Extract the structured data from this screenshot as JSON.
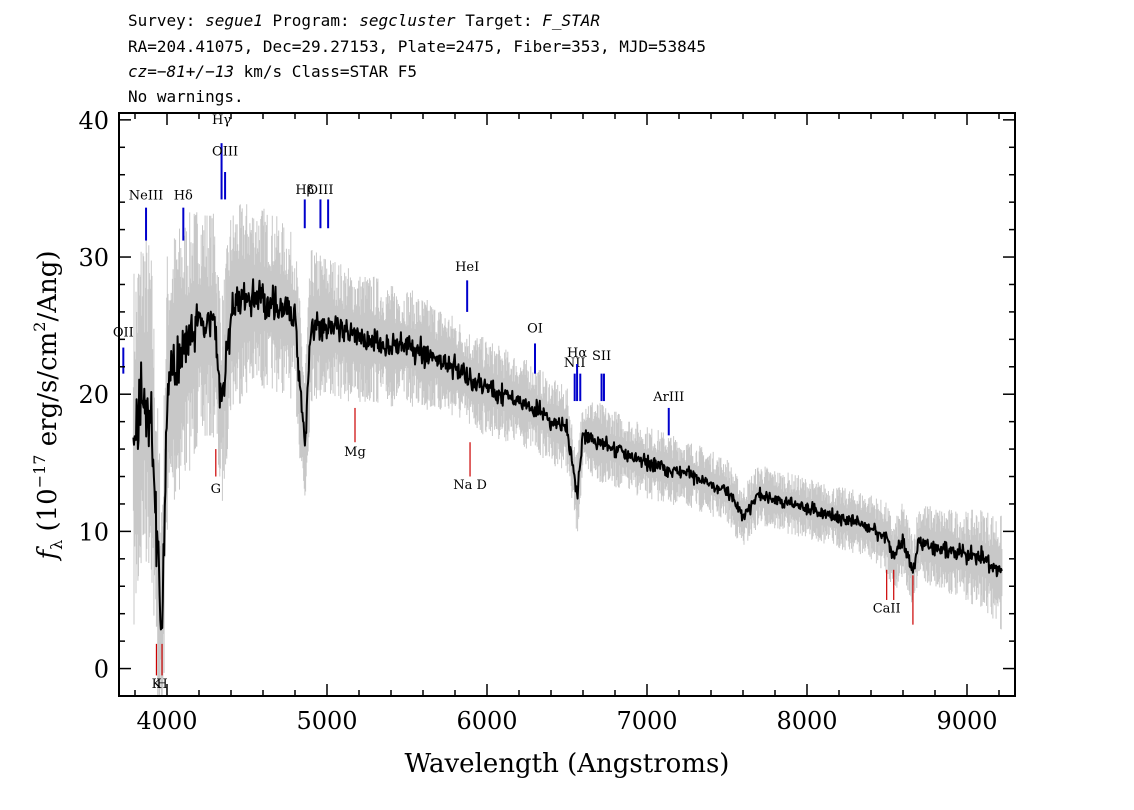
{
  "header": {
    "survey_label": "Survey:",
    "survey_value": "segue1",
    "program_label": "Program:",
    "program_value": "segcluster",
    "target_label": "Target:",
    "target_value": "F_STAR",
    "line2": "RA=204.41075, Dec=29.27153, Plate=2475, Fiber=353, MJD=53845",
    "cz_value": "cz=−81+/−13",
    "cz_rest": " km/s Class=STAR F5",
    "line4": "No warnings."
  },
  "colors": {
    "flux": "#000000",
    "error_band": "#c8c8c8",
    "emission_marker": "#0000cc",
    "absorption_marker": "#cc0000"
  },
  "chart_data": {
    "type": "line",
    "title": "",
    "xlabel": "Wavelength (Angstroms)",
    "ylabel": "fλ (10⁻¹⁷ erg/s/cm²/Ang)",
    "xlim": [
      3700,
      9300
    ],
    "ylim": [
      -2,
      40.5
    ],
    "x_ticks": [
      4000,
      5000,
      6000,
      7000,
      8000,
      9000
    ],
    "y_ticks": [
      0,
      10,
      20,
      30,
      40
    ],
    "grid": false,
    "series": [
      {
        "role": "flux",
        "x": [
          3800,
          3850,
          3900,
          3950,
          3970,
          4000,
          4050,
          4100,
          4150,
          4200,
          4300,
          4340,
          4400,
          4500,
          4600,
          4700,
          4800,
          4861,
          4900,
          5000,
          5100,
          5200,
          5300,
          5400,
          5500,
          5600,
          5700,
          5800,
          5900,
          6000,
          6100,
          6200,
          6300,
          6400,
          6500,
          6563,
          6600,
          6700,
          6800,
          6900,
          7000,
          7100,
          7200,
          7300,
          7400,
          7500,
          7600,
          7700,
          7800,
          7900,
          8000,
          8100,
          8200,
          8300,
          8400,
          8500,
          8542,
          8600,
          8662,
          8700,
          8800,
          8900,
          9000,
          9100,
          9200
        ],
        "y": [
          16,
          20,
          19,
          6,
          3,
          20,
          22,
          23,
          24,
          25,
          25,
          19,
          26,
          27,
          27,
          26.5,
          25.5,
          16.5,
          25,
          25,
          24.5,
          24,
          24,
          23.5,
          23.5,
          23,
          22.5,
          22,
          21,
          20.5,
          20,
          19.5,
          19,
          18,
          17.5,
          12.5,
          17,
          16.5,
          16,
          15.5,
          15,
          14.7,
          14.3,
          14,
          13.5,
          13,
          11,
          12.7,
          12.3,
          12,
          11.7,
          11.3,
          11,
          10.7,
          10.3,
          9.5,
          8,
          9.5,
          7,
          9.3,
          8.8,
          8.5,
          8.2,
          8,
          7
        ]
      },
      {
        "role": "error_band",
        "x": [
          3800,
          4000,
          4200,
          4400,
          4600,
          4800,
          5000,
          5400,
          5800,
          6200,
          6600,
          7000,
          7400,
          7800,
          8200,
          8600,
          9000,
          9200
        ],
        "halfwidth": [
          9,
          7,
          6,
          5,
          4.5,
          4,
          3.5,
          3,
          2.5,
          2.2,
          2,
          1.8,
          1.6,
          1.5,
          1.5,
          1.8,
          2.2,
          2.8
        ]
      }
    ],
    "line_markers": [
      {
        "label": "NeIII",
        "x": 3869,
        "type": "emission",
        "y_top": 33.6,
        "y_bot": 31.2,
        "label_y": 34.2
      },
      {
        "label": "Hδ",
        "x": 4102,
        "type": "emission",
        "y_top": 33.6,
        "y_bot": 31.2,
        "label_y": 34.2
      },
      {
        "label": "Hγ",
        "x": 4341,
        "type": "emission",
        "y_top": 38.3,
        "y_bot": 34.2,
        "label_y": 39.7
      },
      {
        "label": "OIII",
        "x": 4363,
        "type": "emission",
        "y_top": 36.2,
        "y_bot": 34.2,
        "label_y": 37.4
      },
      {
        "label": "Hβ",
        "x": 4861,
        "type": "emission",
        "y_top": 34.2,
        "y_bot": 32.1,
        "label_y": 34.6
      },
      {
        "label": "OIII",
        "x": 4959,
        "type": "emission",
        "y_top": 34.2,
        "y_bot": 32.1,
        "label_y": 34.6
      },
      {
        "label": "OIII",
        "x": 5007,
        "type": "emission",
        "y_top": 34.2,
        "y_bot": 32.1,
        "label_y": 34.6
      },
      {
        "label": "OII",
        "x": 3727,
        "type": "emission",
        "y_top": 23.4,
        "y_bot": 21.5,
        "label_y": 24.2
      },
      {
        "label": "HeI",
        "x": 5876,
        "type": "emission",
        "y_top": 28.3,
        "y_bot": 26.0,
        "label_y": 29.0
      },
      {
        "label": "OI",
        "x": 6300,
        "type": "emission",
        "y_top": 23.7,
        "y_bot": 21.5,
        "label_y": 24.5
      },
      {
        "label": "NII",
        "x": 6548,
        "type": "emission",
        "y_top": 21.5,
        "y_bot": 19.5,
        "label_y": 22.0
      },
      {
        "label": "Hα",
        "x": 6563,
        "type": "emission",
        "y_top": 22.2,
        "y_bot": 19.5,
        "label_y": 22.7
      },
      {
        "label": "NII",
        "x": 6583,
        "type": "emission",
        "y_top": 21.5,
        "y_bot": 19.5,
        "label_y": 22.0
      },
      {
        "label": "SII",
        "x": 6716,
        "type": "emission",
        "y_top": 21.5,
        "y_bot": 19.5,
        "label_y": 22.5
      },
      {
        "label": "SII",
        "x": 6731,
        "type": "emission",
        "y_top": 21.5,
        "y_bot": 19.5,
        "label_y": 22.5
      },
      {
        "label": "ArIII",
        "x": 7136,
        "type": "emission",
        "y_top": 19.0,
        "y_bot": 17.0,
        "label_y": 19.5
      },
      {
        "label": "K",
        "x": 3934,
        "type": "absorption",
        "y_top": 1.8,
        "y_bot": -0.5,
        "label_y": -1.4
      },
      {
        "label": "H",
        "x": 3969,
        "type": "absorption",
        "y_top": 1.8,
        "y_bot": -0.5,
        "label_y": -1.4
      },
      {
        "label": "G",
        "x": 4305,
        "type": "absorption",
        "y_top": 16.0,
        "y_bot": 14.0,
        "label_y": 12.8
      },
      {
        "label": "Mg",
        "x": 5175,
        "type": "absorption",
        "y_top": 19.0,
        "y_bot": 16.5,
        "label_y": 15.5
      },
      {
        "label": "Na D",
        "x": 5894,
        "type": "absorption",
        "y_top": 16.5,
        "y_bot": 14.0,
        "label_y": 13.1
      },
      {
        "label": "CaII",
        "x": 8498,
        "type": "absorption",
        "y_top": 7.2,
        "y_bot": 5.0,
        "label_y": 4.1
      },
      {
        "label": "CaII",
        "x": 8542,
        "type": "absorption",
        "y_top": 7.2,
        "y_bot": 5.0,
        "label_y": 4.1
      },
      {
        "label": "CaII",
        "x": 8662,
        "type": "absorption",
        "y_top": 6.8,
        "y_bot": 3.2,
        "label_y": 4.1
      }
    ]
  }
}
